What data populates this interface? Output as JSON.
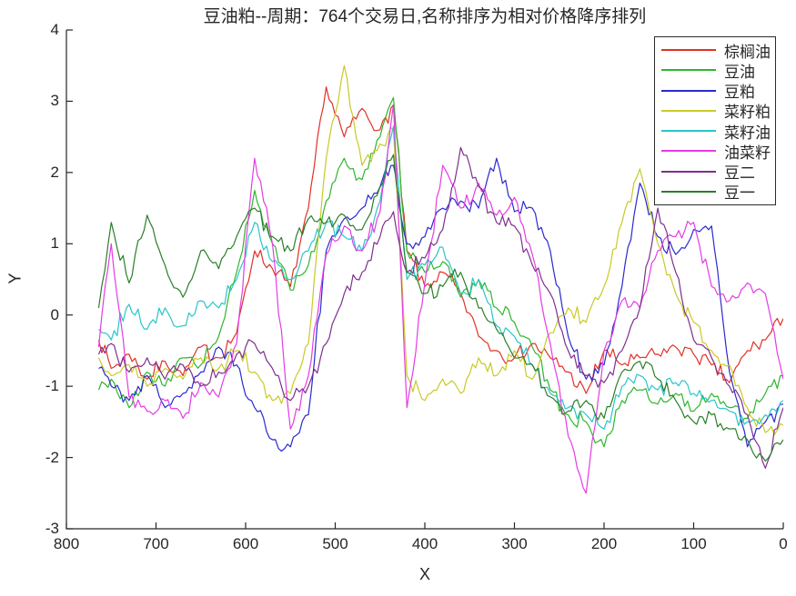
{
  "title": "豆油粕--周期：764个交易日,名称排序为相对价格降序排列",
  "colors": {
    "axis": "#262626",
    "background": "#ffffff",
    "legend_border": "#2b2b2b"
  },
  "legend": {
    "position": "top-right",
    "labels": [
      "棕榈油",
      "豆油",
      "豆粕",
      "菜籽粕",
      "菜籽油",
      "油菜籽",
      "豆二",
      "豆一"
    ]
  },
  "chart_data": {
    "type": "line",
    "title": "豆油粕--周期：764个交易日,名称排序为相对价格降序排列",
    "xlabel": "X",
    "ylabel": "Y",
    "xlim": [
      0,
      800
    ],
    "ylim": [
      -3,
      4
    ],
    "x_axis_reversed": true,
    "grid": false,
    "legend_position": "top-right",
    "x_ticks": [
      800,
      700,
      600,
      500,
      400,
      300,
      200,
      100,
      0
    ],
    "y_ticks": [
      4,
      3,
      2,
      1,
      0,
      -1,
      -2,
      -3
    ],
    "x": [
      764,
      750,
      730,
      710,
      690,
      670,
      650,
      630,
      610,
      590,
      570,
      550,
      530,
      510,
      490,
      470,
      450,
      435,
      420,
      400,
      380,
      360,
      340,
      320,
      300,
      280,
      260,
      240,
      220,
      200,
      180,
      160,
      140,
      120,
      100,
      80,
      60,
      40,
      20,
      0
    ],
    "series": [
      {
        "name": "棕榈油",
        "color": "#e03126",
        "values": [
          -0.35,
          -0.75,
          -0.55,
          -0.9,
          -0.65,
          -0.85,
          -0.45,
          -0.6,
          -0.25,
          0.9,
          0.65,
          0.4,
          1.5,
          3.2,
          2.5,
          2.9,
          2.6,
          2.95,
          0.9,
          0.4,
          0.6,
          0.3,
          -0.3,
          -0.5,
          -0.6,
          -0.4,
          -0.6,
          -0.8,
          -1.1,
          -0.5,
          -0.7,
          -0.6,
          -0.55,
          -0.45,
          -0.55,
          -0.7,
          -0.95,
          -0.5,
          -0.35,
          -0.05
        ]
      },
      {
        "name": "豆油",
        "color": "#2eb52e",
        "values": [
          -1.05,
          -0.9,
          -1.3,
          -0.8,
          -1.0,
          -0.6,
          -0.7,
          -0.3,
          0.6,
          1.75,
          1.0,
          0.35,
          0.7,
          1.6,
          2.2,
          1.9,
          2.5,
          3.05,
          0.9,
          0.6,
          0.75,
          0.25,
          0.5,
          0.1,
          -0.1,
          -0.45,
          -1.05,
          -1.4,
          -1.5,
          -1.85,
          -1.2,
          -1.05,
          -1.25,
          -1.1,
          -1.35,
          -1.1,
          -1.3,
          -1.45,
          -1.1,
          -0.85
        ]
      },
      {
        "name": "豆粕",
        "color": "#2a2ace",
        "values": [
          -0.75,
          -1.0,
          -1.2,
          -0.85,
          -1.3,
          -1.1,
          -0.8,
          -0.45,
          -0.7,
          -1.3,
          -1.75,
          -1.85,
          -1.4,
          0.9,
          1.35,
          1.5,
          1.8,
          2.1,
          1.0,
          1.1,
          1.5,
          1.6,
          1.5,
          2.2,
          1.45,
          1.5,
          0.9,
          -0.3,
          -0.9,
          -0.7,
          0.4,
          1.85,
          1.1,
          0.85,
          1.2,
          1.25,
          -0.8,
          -1.85,
          -1.5,
          -1.25
        ]
      },
      {
        "name": "菜籽粕",
        "color": "#c9c927",
        "values": [
          -0.6,
          -0.85,
          -0.7,
          -1.0,
          -0.75,
          -0.9,
          -0.6,
          -0.75,
          -0.5,
          -0.8,
          -1.2,
          -1.1,
          -0.4,
          2.2,
          3.5,
          2.1,
          2.4,
          2.6,
          -0.85,
          -1.2,
          -0.9,
          -1.1,
          -0.6,
          -0.85,
          -0.5,
          -0.9,
          -0.25,
          0.1,
          -0.1,
          0.4,
          1.3,
          2.05,
          1.0,
          0.3,
          -0.1,
          -0.5,
          -0.7,
          -1.3,
          -1.65,
          -1.55
        ]
      },
      {
        "name": "菜籽油",
        "color": "#29c5c9",
        "values": [
          -0.2,
          -0.35,
          0.15,
          -0.2,
          0.1,
          -0.15,
          0.2,
          0.1,
          0.5,
          1.3,
          0.75,
          0.5,
          0.9,
          1.3,
          1.1,
          0.9,
          1.6,
          2.65,
          0.5,
          0.7,
          0.95,
          0.3,
          0.5,
          -0.15,
          -0.3,
          -0.7,
          -1.1,
          -1.3,
          -1.4,
          -1.6,
          -1.0,
          -0.85,
          -1.05,
          -0.95,
          -1.1,
          -1.2,
          -1.35,
          -1.5,
          -1.4,
          -1.2
        ]
      },
      {
        "name": "油菜籽",
        "color": "#e43ce4",
        "values": [
          -0.45,
          1.0,
          -1.15,
          -1.35,
          -1.2,
          -1.45,
          -0.95,
          -1.15,
          -0.4,
          2.2,
          1.0,
          -1.6,
          -0.85,
          0.85,
          1.25,
          0.9,
          1.45,
          2.95,
          -1.3,
          0.45,
          2.1,
          1.5,
          1.85,
          1.4,
          1.65,
          0.85,
          -0.4,
          -1.7,
          -2.5,
          -0.5,
          0.2,
          0.1,
          0.9,
          1.1,
          1.3,
          0.4,
          0.2,
          0.45,
          0.3,
          -0.9
        ]
      },
      {
        "name": "豆二",
        "color": "#7e2f8e",
        "values": [
          -0.55,
          -0.4,
          -0.8,
          -0.6,
          -0.9,
          -0.7,
          -1.0,
          -0.8,
          -0.55,
          -0.4,
          -0.75,
          -1.2,
          -1.0,
          -0.4,
          0.3,
          0.6,
          1.1,
          1.45,
          0.6,
          0.8,
          1.2,
          2.35,
          1.8,
          1.3,
          1.25,
          0.7,
          0.3,
          -0.5,
          -0.85,
          -0.95,
          -0.5,
          0.1,
          1.5,
          0.6,
          -0.35,
          -0.6,
          -1.0,
          -1.4,
          -2.15,
          -1.3
        ]
      },
      {
        "name": "豆一",
        "color": "#2a7e2a",
        "values": [
          0.1,
          1.3,
          0.45,
          1.4,
          0.7,
          0.25,
          0.9,
          0.65,
          1.1,
          1.5,
          1.1,
          0.9,
          1.35,
          1.3,
          1.4,
          1.2,
          1.8,
          2.25,
          0.6,
          0.3,
          0.4,
          0.6,
          0.1,
          -0.2,
          -0.6,
          -0.7,
          -1.15,
          -1.35,
          -1.2,
          -1.45,
          -0.8,
          -0.65,
          -0.9,
          -1.2,
          -1.5,
          -1.4,
          -1.6,
          -1.75,
          -2.05,
          -1.75
        ]
      }
    ]
  }
}
